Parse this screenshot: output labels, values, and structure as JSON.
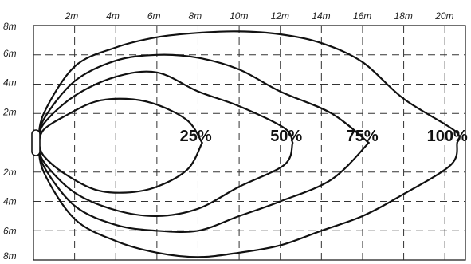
{
  "chart_data": {
    "type": "line",
    "title": "",
    "xlabel": "",
    "ylabel": "",
    "x_ticks": [
      "2m",
      "4m",
      "6m",
      "8m",
      "10m",
      "12m",
      "14m",
      "16m",
      "18m",
      "20m"
    ],
    "y_ticks_upper": [
      "8m",
      "6m",
      "4m",
      "2m"
    ],
    "y_ticks_lower": [
      "2m",
      "4m",
      "6m",
      "8m"
    ],
    "xlim": [
      0,
      21
    ],
    "ylim": [
      -8,
      8
    ],
    "grid": true,
    "grid_style": "dashed",
    "series": [
      {
        "name": "25%",
        "upper": [
          [
            0.5,
            0.9
          ],
          [
            1.5,
            1.8
          ],
          [
            3,
            2.8
          ],
          [
            4.5,
            3.0
          ],
          [
            6,
            2.6
          ],
          [
            7.5,
            1.5
          ],
          [
            8.2,
            0.0
          ]
        ],
        "lower": [
          [
            0.5,
            -0.9
          ],
          [
            1.5,
            -2.1
          ],
          [
            3,
            -3.2
          ],
          [
            4.5,
            -3.4
          ],
          [
            6,
            -3.0
          ],
          [
            7.5,
            -1.8
          ],
          [
            8.2,
            0.0
          ]
        ]
      },
      {
        "name": "50%",
        "upper": [
          [
            0.5,
            1.3
          ],
          [
            2,
            3.2
          ],
          [
            4,
            4.5
          ],
          [
            6,
            4.8
          ],
          [
            8,
            3.5
          ],
          [
            10,
            2.5
          ],
          [
            12.2,
            1.0
          ],
          [
            12.6,
            0.0
          ]
        ],
        "lower": [
          [
            0.5,
            -1.3
          ],
          [
            2,
            -3.4
          ],
          [
            4,
            -4.6
          ],
          [
            6,
            -5.0
          ],
          [
            8,
            -4.5
          ],
          [
            10,
            -3.0
          ],
          [
            12.2,
            -1.5
          ],
          [
            12.6,
            0.0
          ]
        ]
      },
      {
        "name": "75%",
        "upper": [
          [
            0.5,
            1.6
          ],
          [
            2,
            4.2
          ],
          [
            4,
            5.6
          ],
          [
            6,
            6.0
          ],
          [
            8,
            5.8
          ],
          [
            10,
            5.0
          ],
          [
            12,
            3.5
          ],
          [
            14.5,
            2.0
          ],
          [
            16.3,
            0.0
          ]
        ],
        "lower": [
          [
            0.5,
            -1.6
          ],
          [
            2,
            -4.3
          ],
          [
            4,
            -5.6
          ],
          [
            6,
            -6.0
          ],
          [
            8,
            -6.0
          ],
          [
            10,
            -5.0
          ],
          [
            12,
            -4.0
          ],
          [
            14.5,
            -2.5
          ],
          [
            16.3,
            0.0
          ]
        ]
      },
      {
        "name": "100%",
        "upper": [
          [
            0.5,
            2.0
          ],
          [
            2,
            5.2
          ],
          [
            4,
            6.5
          ],
          [
            6,
            7.2
          ],
          [
            8,
            7.5
          ],
          [
            10,
            7.6
          ],
          [
            12,
            7.4
          ],
          [
            14,
            6.8
          ],
          [
            16,
            5.5
          ],
          [
            18,
            3.0
          ],
          [
            20.5,
            0.8
          ],
          [
            20.6,
            0.0
          ]
        ],
        "lower": [
          [
            0.5,
            -2.0
          ],
          [
            2,
            -5.2
          ],
          [
            4,
            -6.7
          ],
          [
            6,
            -7.5
          ],
          [
            8,
            -7.8
          ],
          [
            10,
            -7.5
          ],
          [
            12,
            -7.0
          ],
          [
            14,
            -6.0
          ],
          [
            16,
            -5.0
          ],
          [
            18,
            -3.5
          ],
          [
            20.3,
            -1.5
          ],
          [
            20.6,
            0.0
          ]
        ]
      }
    ]
  }
}
